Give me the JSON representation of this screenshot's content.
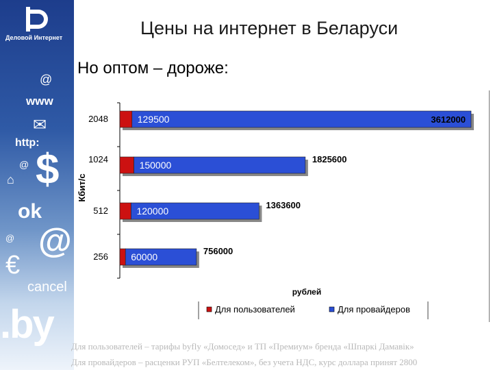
{
  "title": "Цены на интернет в Беларуси",
  "subtitle": "Но оптом – дороже:",
  "sidebar": {
    "logo_text": "Деловой Интернет",
    "icons": [
      "@",
      "www",
      "✉",
      "http:",
      "@",
      "⌂",
      "$",
      "ok",
      "@",
      "@",
      "€",
      "cancel",
      ".by"
    ]
  },
  "footer": {
    "line1": "Для пользователей – тарифы byfly «Домосед» и ТП «Премиум» бренда «Шпаркі Дамавік»",
    "line2": "Для провайдеров – расценки РУП «Белтелеком», без учета НДС, курс доллара принят 2800"
  },
  "colors": {
    "users": "#cc1111",
    "providers": "#2b4fd6",
    "sidebar": "#2f5aa6"
  },
  "chart_data": {
    "type": "bar",
    "orientation": "horizontal",
    "stacked": true,
    "categories": [
      "2048",
      "1024",
      "512",
      "256"
    ],
    "ylabel": "Кбит/с",
    "xlabel": "рублей",
    "legend_position": "bottom",
    "series": [
      {
        "name": "Для пользователей",
        "values": [
          129500,
          150000,
          120000,
          60000
        ],
        "labels": [
          "129500",
          "150000",
          "120000",
          "60000"
        ]
      },
      {
        "name": "Для провайдеров",
        "values": [
          3612000,
          1825600,
          1363600,
          756000
        ],
        "labels": [
          "3612000",
          "1825600",
          "1363600",
          "756000"
        ]
      }
    ]
  }
}
